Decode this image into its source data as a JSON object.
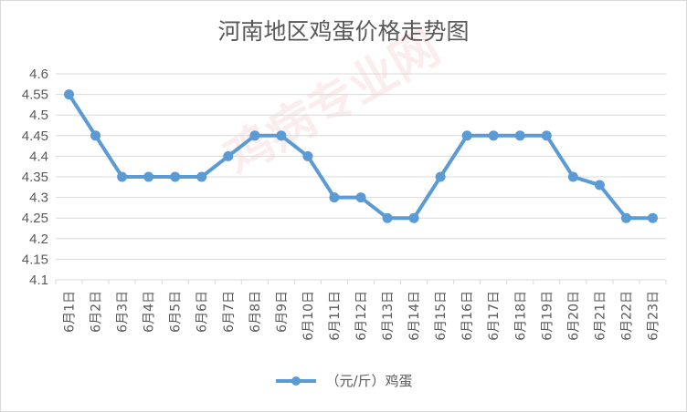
{
  "colors": {
    "series": "#5B9BD5",
    "grid": "#d9d9d9",
    "text": "#595959",
    "watermark": "#d64a4a"
  },
  "watermark": "鸡病专业网",
  "chart_data": {
    "type": "line",
    "title": "河南地区鸡蛋价格走势图",
    "xlabel": "",
    "ylabel": "",
    "categories": [
      "6月1日",
      "6月2日",
      "6月3日",
      "6月4日",
      "6月5日",
      "6月6日",
      "6月7日",
      "6月8日",
      "6月9日",
      "6月10日",
      "6月11日",
      "6月12日",
      "6月13日",
      "6月14日",
      "6月15日",
      "6月16日",
      "6月17日",
      "6月18日",
      "6月19日",
      "6月20日",
      "6月21日",
      "6月22日",
      "6月23日"
    ],
    "series": [
      {
        "name": "（元/斤）鸡蛋",
        "values": [
          4.55,
          4.45,
          4.35,
          4.35,
          4.35,
          4.35,
          4.4,
          4.45,
          4.45,
          4.4,
          4.3,
          4.3,
          4.25,
          4.25,
          4.35,
          4.45,
          4.45,
          4.45,
          4.45,
          4.35,
          4.33,
          4.25,
          4.25
        ]
      }
    ],
    "ylim": [
      4.1,
      4.6
    ],
    "yticks": [
      "4.1",
      "4.15",
      "4.2",
      "4.25",
      "4.3",
      "4.35",
      "4.4",
      "4.45",
      "4.5",
      "4.55",
      "4.6"
    ],
    "grid": true,
    "legend_position": "bottom"
  }
}
